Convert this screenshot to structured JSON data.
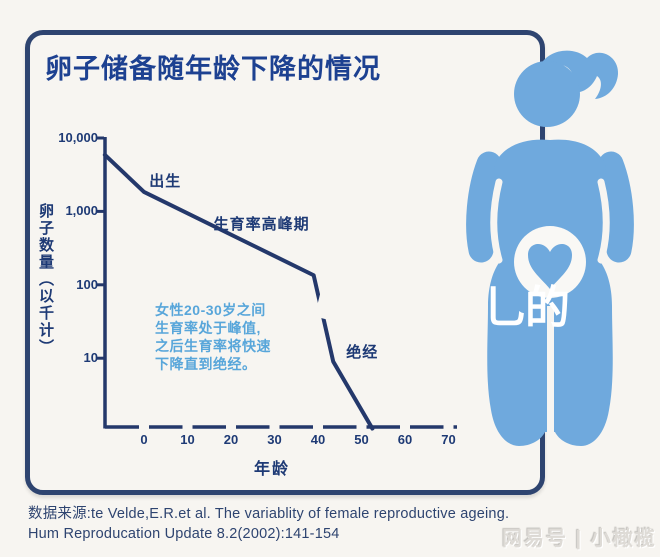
{
  "title": "卵子储备随年龄下降的情况",
  "chart_data": {
    "type": "line",
    "title": "卵子储备随年龄下降的情况",
    "xlabel": "年龄",
    "ylabel": "卵子数量（以千计）",
    "x_ticks": [
      "0",
      "10",
      "20",
      "30",
      "40",
      "50",
      "60",
      "70"
    ],
    "y_ticks": [
      {
        "label": "10,000",
        "value": 10000
      },
      {
        "label": "1,000",
        "value": 1000
      },
      {
        "label": "100",
        "value": 100
      },
      {
        "label": "10",
        "value": 10
      }
    ],
    "y_scale": "log",
    "xlim": [
      -9,
      71
    ],
    "ylim": [
      1,
      10000
    ],
    "grid": false,
    "series": [
      {
        "name": "卵子数量(千)",
        "points": [
          [
            -9,
            5900
          ],
          [
            0,
            1840
          ],
          [
            39,
            135
          ],
          [
            43.5,
            9
          ],
          [
            52.5,
            1.1
          ]
        ]
      }
    ],
    "annotations": [
      {
        "text": "出生",
        "x": 1.2,
        "y": 2800
      },
      {
        "text": "生育率高峰期",
        "x": 16,
        "y": 720
      },
      {
        "text": "绝经",
        "x": 46.5,
        "y": 13
      }
    ],
    "note": "女性20-30岁之间\n生育率处于峰值,\n之后生育率将快速\n下降直到绝经。"
  },
  "figure": {
    "description": "pregnant-woman-silhouette",
    "belly_icon": "heart"
  },
  "source": {
    "line1": "数据来源:te Velde,E.R.et al. The variablity of female reproductive ageing.",
    "line2": "Hum Reproducation Update 8.2(2002):141-154"
  },
  "watermarks": {
    "overlay": "乚的",
    "brand": "网易号 | 小橄榄"
  },
  "colors": {
    "background": "#f7f5f1",
    "frame_navy": "#2e4470",
    "title_blue": "#1d4191",
    "line_navy": "#24386b",
    "label_navy": "#1e3a75",
    "note_blue": "#58a6da",
    "figure_blue": "#6fa9dd",
    "watermark_gray": "#dedbd6"
  }
}
